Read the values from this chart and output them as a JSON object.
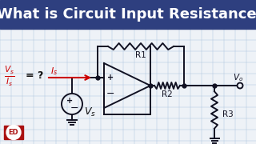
{
  "title": "What is Circuit Input Resistance",
  "title_bg": "#2e3f7f",
  "title_color": "#ffffff",
  "body_bg": "#eef2f7",
  "grid_color": "#aec6e0",
  "formula_vs_color": "#cc0000",
  "is_arrow_color": "#cc0000",
  "component_color": "#111122",
  "logo_bg": "#aa1111",
  "logo_text": "ED",
  "r1_label": "R1",
  "r2_label": "R2",
  "r3_label": "R3"
}
